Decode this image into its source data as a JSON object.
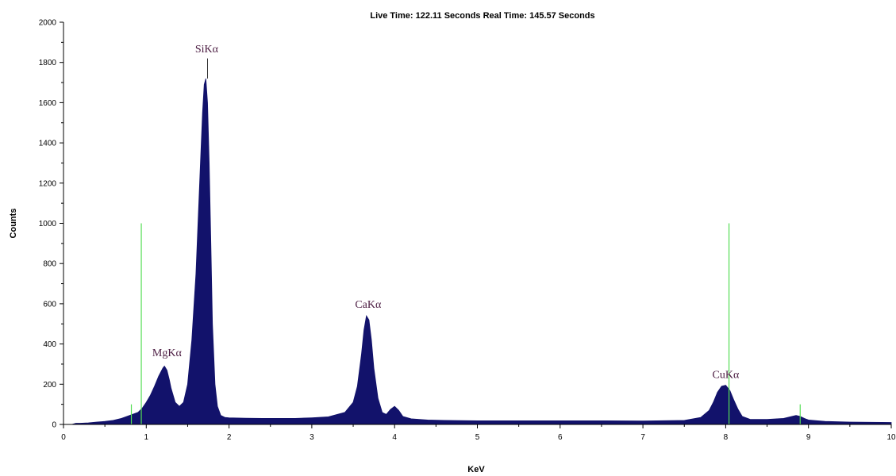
{
  "chart_data": {
    "type": "area",
    "title": "Live Time: 122.11 Seconds   Real Time: 145.57 Seconds",
    "xlabel": "KeV",
    "ylabel": "Counts",
    "xlim": [
      0,
      10
    ],
    "ylim": [
      0,
      2000
    ],
    "x_ticks": [
      "0",
      "1",
      "2",
      "3",
      "4",
      "5",
      "6",
      "7",
      "8",
      "9",
      "10"
    ],
    "y_ticks": [
      "0",
      "200",
      "400",
      "600",
      "800",
      "1000",
      "1200",
      "1400",
      "1600",
      "1800",
      "2000"
    ],
    "grid": false,
    "series": [
      {
        "color": "#12126b",
        "x": [
          0.0,
          0.1,
          0.15,
          0.2,
          0.3,
          0.4,
          0.5,
          0.6,
          0.7,
          0.8,
          0.9,
          0.95,
          1.0,
          1.05,
          1.1,
          1.15,
          1.2,
          1.22,
          1.25,
          1.28,
          1.3,
          1.35,
          1.4,
          1.45,
          1.5,
          1.55,
          1.6,
          1.63,
          1.66,
          1.68,
          1.7,
          1.72,
          1.74,
          1.76,
          1.78,
          1.8,
          1.83,
          1.86,
          1.9,
          1.95,
          2.0,
          2.1,
          2.2,
          2.4,
          2.6,
          2.8,
          3.0,
          3.2,
          3.4,
          3.5,
          3.55,
          3.6,
          3.63,
          3.66,
          3.69,
          3.72,
          3.75,
          3.8,
          3.85,
          3.9,
          3.95,
          4.0,
          4.05,
          4.1,
          4.2,
          4.4,
          4.6,
          5.0,
          5.5,
          6.0,
          6.5,
          7.0,
          7.5,
          7.7,
          7.8,
          7.85,
          7.9,
          7.95,
          8.0,
          8.05,
          8.1,
          8.15,
          8.2,
          8.3,
          8.5,
          8.7,
          8.8,
          8.85,
          8.9,
          8.95,
          9.0,
          9.2,
          9.5,
          10.0
        ],
        "values": [
          0,
          0,
          6,
          6,
          8,
          12,
          15,
          20,
          30,
          45,
          60,
          80,
          110,
          145,
          190,
          240,
          280,
          290,
          270,
          220,
          180,
          110,
          90,
          110,
          200,
          420,
          750,
          1050,
          1350,
          1550,
          1690,
          1720,
          1600,
          1300,
          900,
          500,
          200,
          90,
          45,
          35,
          33,
          32,
          31,
          30,
          30,
          30,
          33,
          38,
          60,
          110,
          190,
          350,
          470,
          540,
          520,
          420,
          280,
          130,
          60,
          50,
          75,
          90,
          70,
          40,
          28,
          22,
          20,
          18,
          18,
          18,
          18,
          17,
          20,
          35,
          70,
          110,
          160,
          190,
          195,
          170,
          120,
          75,
          40,
          25,
          25,
          30,
          40,
          45,
          40,
          30,
          22,
          15,
          12,
          10
        ]
      }
    ],
    "markers": [
      {
        "x": 0.82,
        "y": 100,
        "color": "#55dd55"
      },
      {
        "x": 0.94,
        "y": 1000,
        "color": "#55dd55"
      },
      {
        "x": 8.04,
        "y": 1000,
        "color": "#55dd55"
      },
      {
        "x": 8.9,
        "y": 100,
        "color": "#55dd55"
      }
    ],
    "annotations": [
      {
        "text": "SiKα",
        "x": 1.73,
        "y": 1850
      },
      {
        "text": "MgKα",
        "x": 1.25,
        "y": 340
      },
      {
        "text": "CaKα",
        "x": 3.68,
        "y": 580
      },
      {
        "text": "CuKα",
        "x": 8.0,
        "y": 230
      }
    ],
    "peak_lines": [
      {
        "x": 1.74,
        "y_from": 1720,
        "y_to": 1820
      }
    ]
  }
}
